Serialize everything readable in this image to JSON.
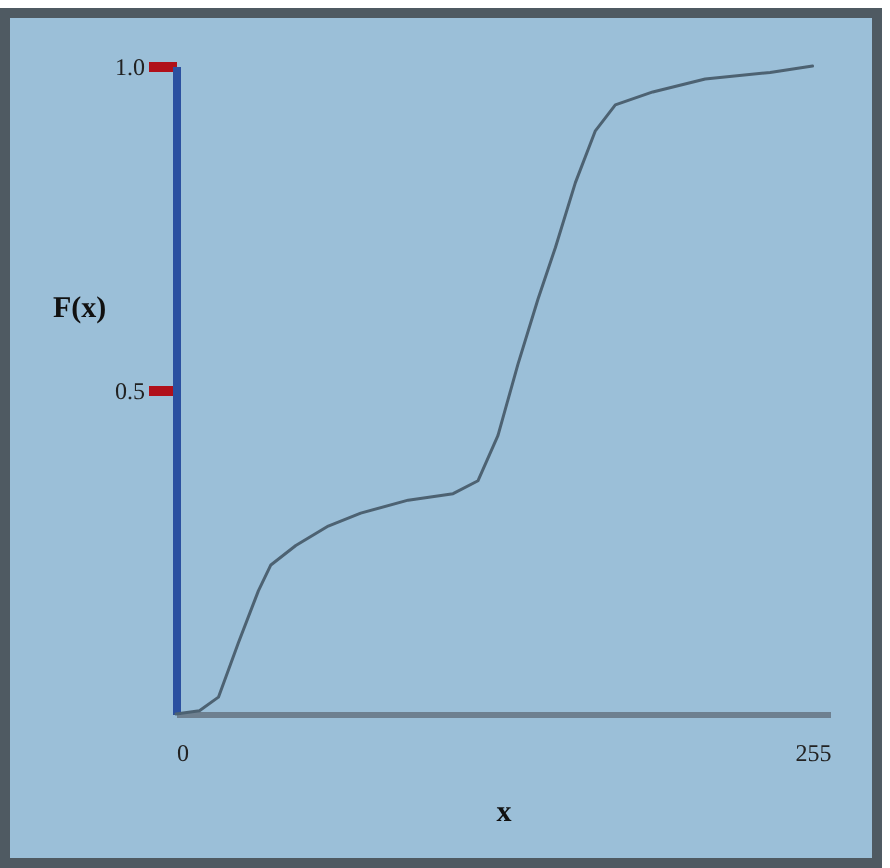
{
  "chart_data": {
    "type": "line",
    "xlabel": "x",
    "ylabel": "F(x)",
    "x": [
      0,
      9.4,
      17,
      25,
      33,
      38,
      48,
      61,
      74,
      93,
      111,
      121,
      129,
      137,
      145,
      152,
      160,
      168,
      176,
      191,
      212,
      238,
      255
    ],
    "series": [
      {
        "color": "#4d6272",
        "values": [
          0,
          0.005,
          0.026,
          0.11,
          0.19,
          0.23,
          0.26,
          0.29,
          0.31,
          0.33,
          0.34,
          0.36,
          0.43,
          0.54,
          0.64,
          0.72,
          0.82,
          0.9,
          0.94,
          0.96,
          0.98,
          0.99,
          1.0
        ]
      }
    ],
    "xlim": [
      0,
      262
    ],
    "xticks": [
      0,
      255
    ],
    "ylim": [
      0,
      1
    ],
    "yticks": [
      {
        "value": 0.5,
        "label": "0.5"
      },
      {
        "value": 1,
        "label": "1.0"
      }
    ],
    "grid": false,
    "marker": "none",
    "line_style": "solid"
  }
}
